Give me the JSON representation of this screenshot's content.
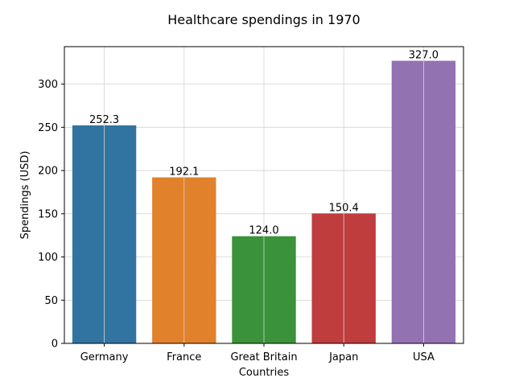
{
  "chart_data": {
    "type": "bar",
    "title": "Healthcare spendings in 1970",
    "xlabel": "Countries",
    "ylabel": "Spendings (USD)",
    "categories": [
      "Germany",
      "France",
      "Great Britain",
      "Japan",
      "USA"
    ],
    "values": [
      252.3,
      192.1,
      124.0,
      150.4,
      327.0
    ],
    "value_labels": [
      "252.3",
      "192.1",
      "124.0",
      "150.4",
      "327.0"
    ],
    "ylim": [
      0,
      343.35
    ],
    "yticks": [
      0,
      50,
      100,
      150,
      200,
      250,
      300
    ],
    "grid": true,
    "legend": "none",
    "colors": [
      "#3274a1",
      "#e1812c",
      "#3a923a",
      "#c03d3e",
      "#9372b2"
    ],
    "grid_color": "#d3d3d3"
  }
}
